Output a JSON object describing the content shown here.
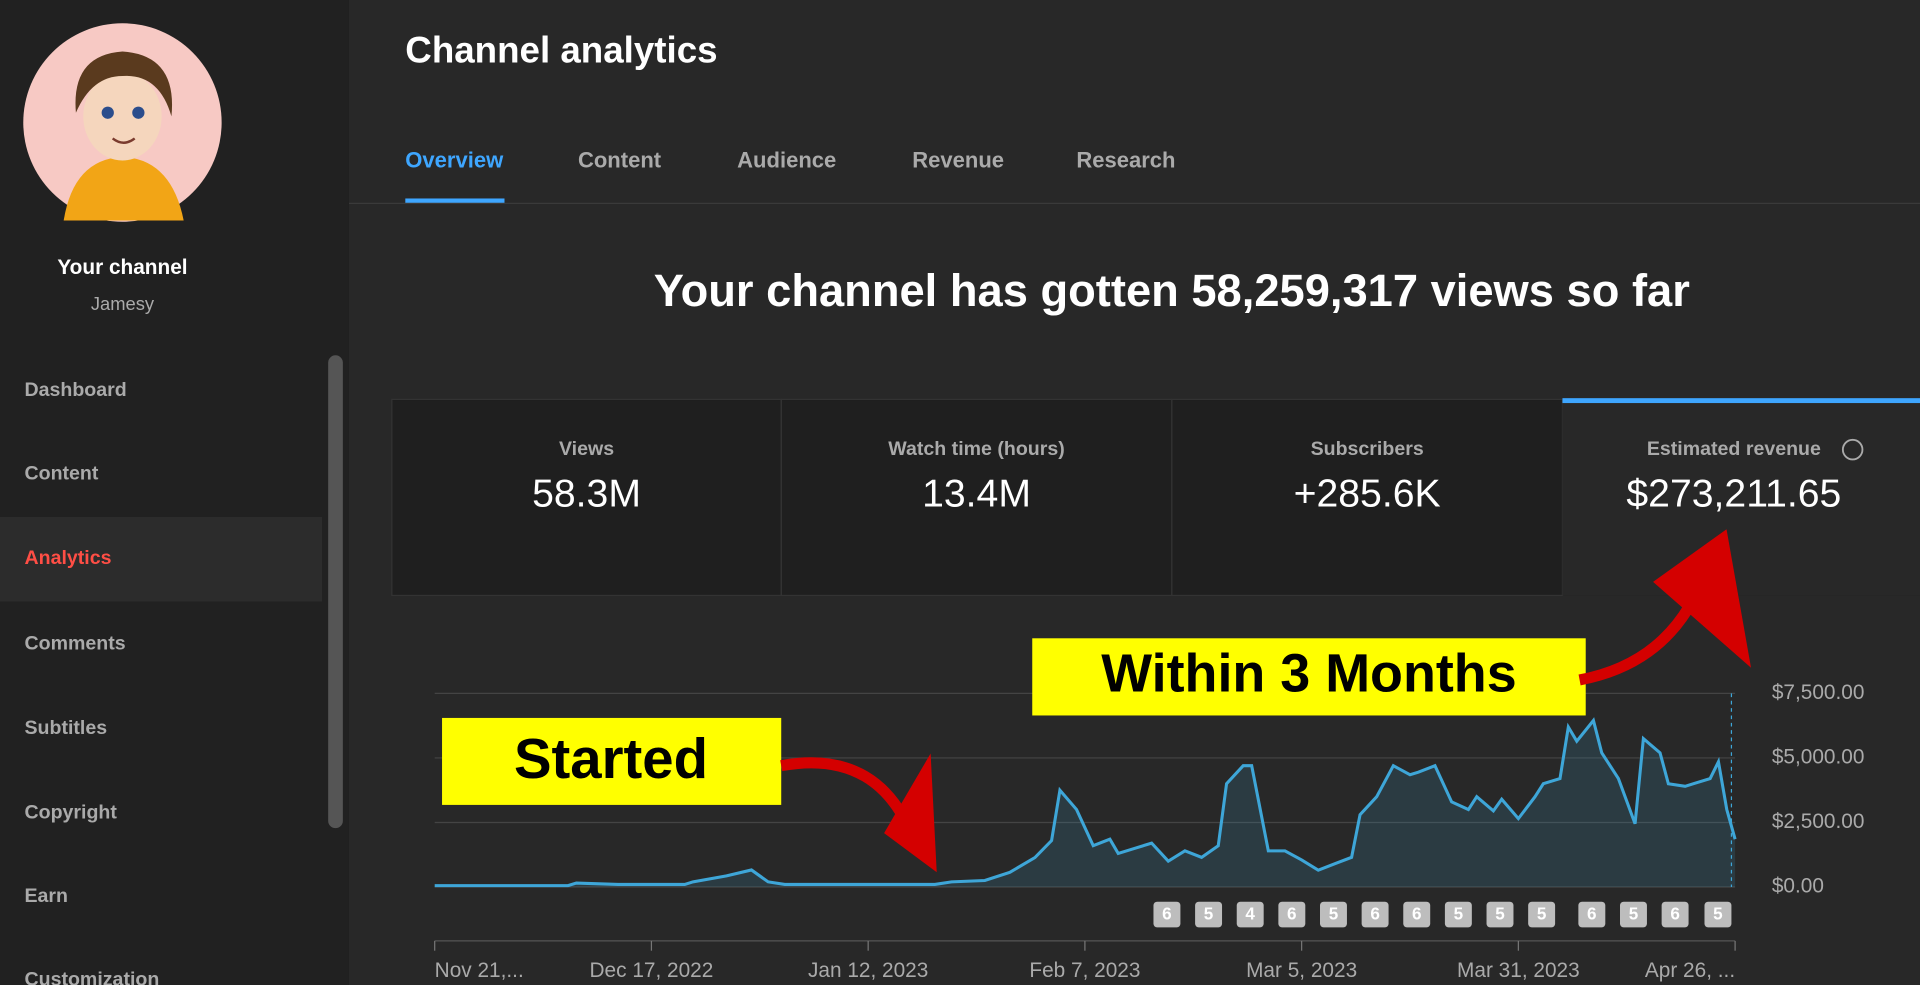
{
  "sidebar": {
    "channel_title": "Your channel",
    "channel_name": "Jamesy",
    "items": [
      "Dashboard",
      "Content",
      "Analytics",
      "Comments",
      "Subtitles",
      "Copyright",
      "Earn",
      "Customization"
    ],
    "active_index": 2
  },
  "header": {
    "title": "Channel analytics"
  },
  "tabs": {
    "items": [
      "Overview",
      "Content",
      "Audience",
      "Revenue",
      "Research"
    ],
    "active_index": 0
  },
  "headline": "Your channel has gotten 58,259,317 views so far",
  "metrics": [
    {
      "label": "Views",
      "value": "58.3M"
    },
    {
      "label": "Watch time (hours)",
      "value": "13.4M"
    },
    {
      "label": "Subscribers",
      "value": "+285.6K"
    },
    {
      "label": "Estimated revenue",
      "value": "$273,211.65"
    }
  ],
  "chart_data": {
    "type": "line",
    "color": "#3ea6d8",
    "grid": true,
    "y_axis_side": "right",
    "x": [
      0,
      16,
      17,
      22,
      30,
      31,
      35,
      38,
      40,
      42,
      60,
      62,
      66,
      69,
      72,
      74,
      75,
      77,
      79,
      81,
      82,
      84,
      86,
      88,
      90,
      92,
      94,
      95,
      97,
      98,
      100,
      102,
      104,
      106,
      108,
      110,
      111,
      113,
      115,
      117,
      118,
      120,
      122,
      124,
      125,
      127,
      128,
      130,
      132,
      133,
      135,
      136,
      137,
      139,
      140,
      142,
      144,
      145,
      147,
      148,
      150,
      151,
      153,
      154,
      155,
      156
    ],
    "values": [
      50,
      50,
      150,
      100,
      100,
      200,
      430,
      660,
      200,
      100,
      100,
      200,
      250,
      570,
      1140,
      1800,
      3750,
      3000,
      1600,
      1850,
      1300,
      1500,
      1700,
      1000,
      1400,
      1150,
      1600,
      4000,
      4700,
      4700,
      1400,
      1400,
      1050,
      650,
      900,
      1150,
      2800,
      3500,
      4700,
      4350,
      4450,
      4700,
      3300,
      3000,
      3500,
      2950,
      3400,
      2650,
      3500,
      4000,
      4200,
      6200,
      5650,
      6450,
      5200,
      4200,
      2450,
      5750,
      5200,
      4000,
      3900,
      4000,
      4200,
      4850,
      3000,
      1850
    ],
    "xlim": [
      0,
      156
    ],
    "xticks": [
      {
        "value": 0,
        "label": "Nov 21,..."
      },
      {
        "value": 26,
        "label": "Dec 17, 2022"
      },
      {
        "value": 52,
        "label": "Jan 12, 2023"
      },
      {
        "value": 78,
        "label": "Feb 7, 2023"
      },
      {
        "value": 104,
        "label": "Mar 5, 2023"
      },
      {
        "value": 130,
        "label": "Mar 31, 2023"
      },
      {
        "value": 156,
        "label": "Apr 26, ..."
      }
    ],
    "ylim": [
      0,
      7500
    ],
    "yticks": [
      {
        "value": 0,
        "label": "$0.00"
      },
      {
        "value": 2500,
        "label": "$2,500.00"
      },
      {
        "value": 5000,
        "label": "$5,000.00"
      },
      {
        "value": 7500,
        "label": "$7,500.00"
      }
    ]
  },
  "badges": [
    6,
    5,
    4,
    6,
    5,
    6,
    6,
    5,
    5,
    5,
    6,
    5,
    6,
    5
  ],
  "annotations": [
    "Started",
    "Within 3 Months"
  ]
}
